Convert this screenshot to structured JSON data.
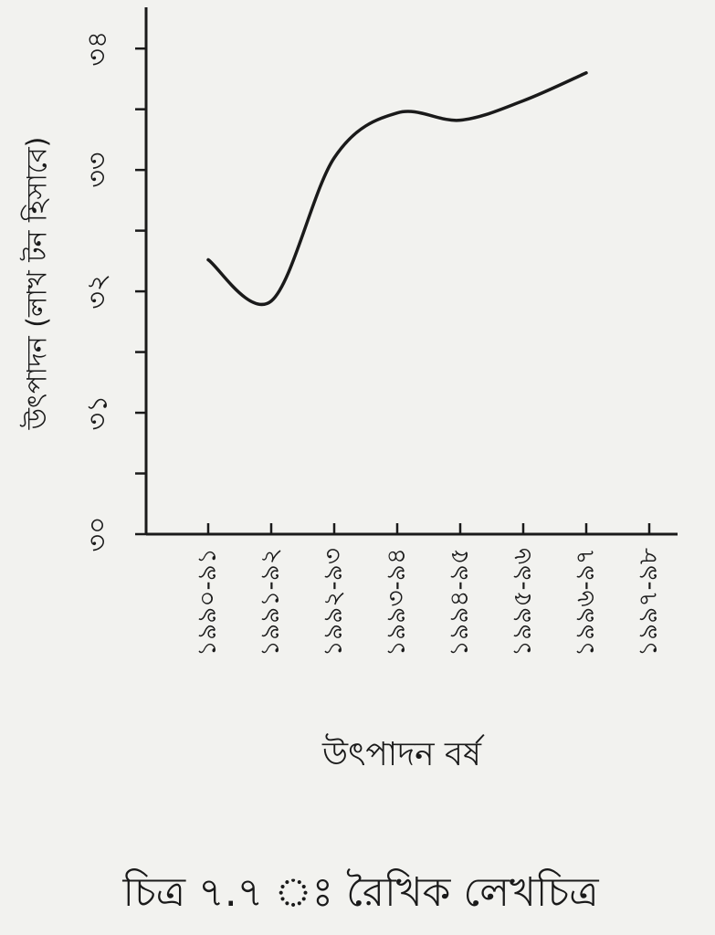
{
  "chart_data": {
    "type": "line",
    "y_label": "উৎপাদন (লাখ টন হিসাবে)",
    "x_label": "উৎপাদন বর্ষ",
    "caption": "চিত্র ৭.৭ ঃ রৈখিক লেখচিত্র",
    "categories": [
      "১৯৯০-৯১",
      "১৯৯১-৯২",
      "১৯৯২-৯৩",
      "১৯৯৩-৯৪",
      "১৯৯৪-৯৫",
      "১৯৯৫-৯৬",
      "১৯৯৬-৯৭",
      "১৯৯৭-৯৮"
    ],
    "values": [
      32.26,
      31.92,
      33.1,
      33.47,
      33.41,
      33.57,
      33.8,
      null
    ],
    "color": "#1a1a1a",
    "ylim": [
      30,
      34.4
    ],
    "yticks": [
      {
        "value": 30,
        "label": "৩০"
      },
      {
        "value": 31,
        "label": "৩১"
      },
      {
        "value": 32,
        "label": "৩২"
      },
      {
        "value": 33,
        "label": "৩৩"
      },
      {
        "value": 34,
        "label": "৩৪"
      }
    ]
  }
}
